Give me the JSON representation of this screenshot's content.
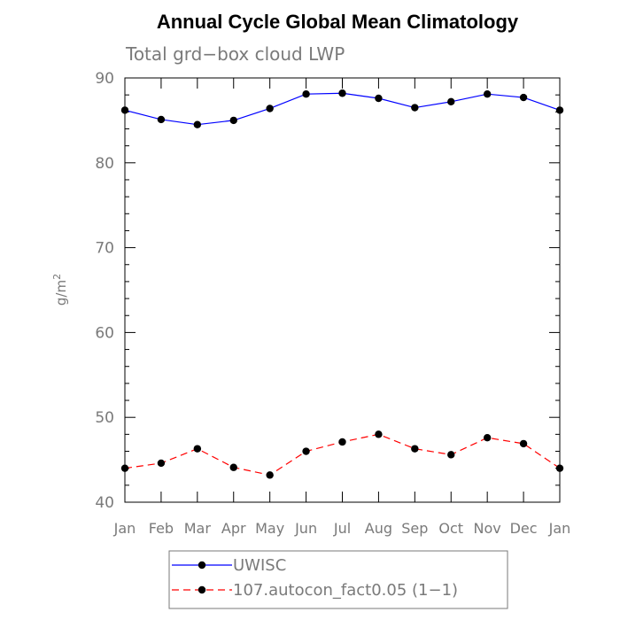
{
  "chart_data": {
    "type": "line",
    "title": "Annual Cycle Global Mean Climatology",
    "subtitle": "Total grd−box cloud LWP",
    "ylabel_base": "g/m",
    "ylabel_sup": "2",
    "ylim": [
      40,
      90
    ],
    "yticks": [
      40,
      50,
      60,
      70,
      80,
      90
    ],
    "categories": [
      "Jan",
      "Feb",
      "Mar",
      "Apr",
      "May",
      "Jun",
      "Jul",
      "Aug",
      "Sep",
      "Oct",
      "Nov",
      "Dec",
      "Jan"
    ],
    "series": [
      {
        "name": "UWISC",
        "color": "#0000ff",
        "dash": "solid",
        "values": [
          86.2,
          85.1,
          84.5,
          85.0,
          86.4,
          88.1,
          88.2,
          87.6,
          86.5,
          87.2,
          88.1,
          87.7,
          86.2
        ]
      },
      {
        "name": "107.autocon_fact0.05 (1−1)",
        "color": "#ff0000",
        "dash": "dashed",
        "values": [
          44.0,
          44.6,
          46.3,
          44.1,
          43.2,
          46.0,
          47.1,
          48.0,
          46.3,
          45.6,
          47.6,
          46.9,
          44.0
        ]
      }
    ],
    "legend_placement": "bottom",
    "grid": false
  }
}
